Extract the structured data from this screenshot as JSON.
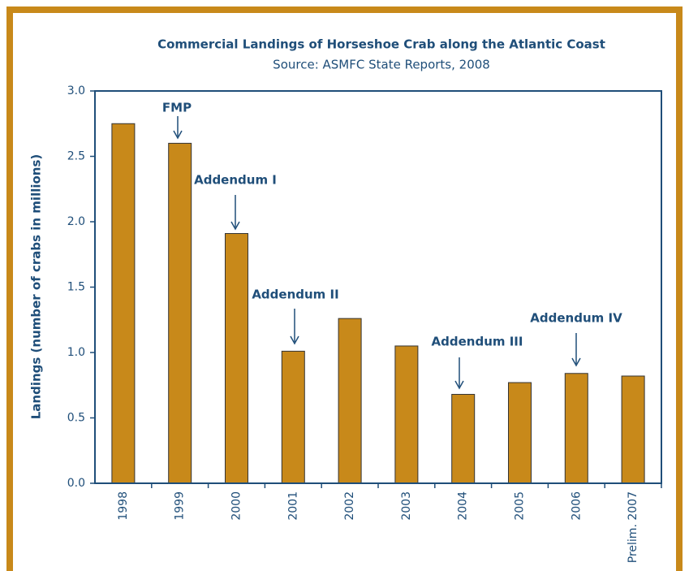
{
  "chart_data": {
    "type": "bar",
    "title": "Commercial Landings of Horseshoe Crab along the Atlantic Coast",
    "subtitle": "Source: ASMFC State Reports, 2008",
    "y_label": "Landings (number of crabs in millions)",
    "categories": [
      "1998",
      "1999",
      "2000",
      "2001",
      "2002",
      "2003",
      "2004",
      "2005",
      "2006",
      "Prelim. 2007"
    ],
    "values": [
      2.75,
      2.6,
      1.91,
      1.01,
      1.26,
      1.05,
      0.68,
      0.77,
      0.84,
      0.82
    ],
    "color": "#c8891a",
    "ylim": [
      0,
      3
    ],
    "yticks": [
      {
        "value": 0,
        "label": "0.0"
      },
      0.5,
      {
        "value": 1,
        "label": "1.0"
      },
      1.5,
      {
        "value": 2,
        "label": "2.0"
      },
      2.5,
      {
        "value": 3,
        "label": "3.0"
      }
    ],
    "annotations": [
      "FMP",
      "Addendum I",
      "Addendum II",
      "Addendum III",
      "Addendum IV"
    ]
  }
}
